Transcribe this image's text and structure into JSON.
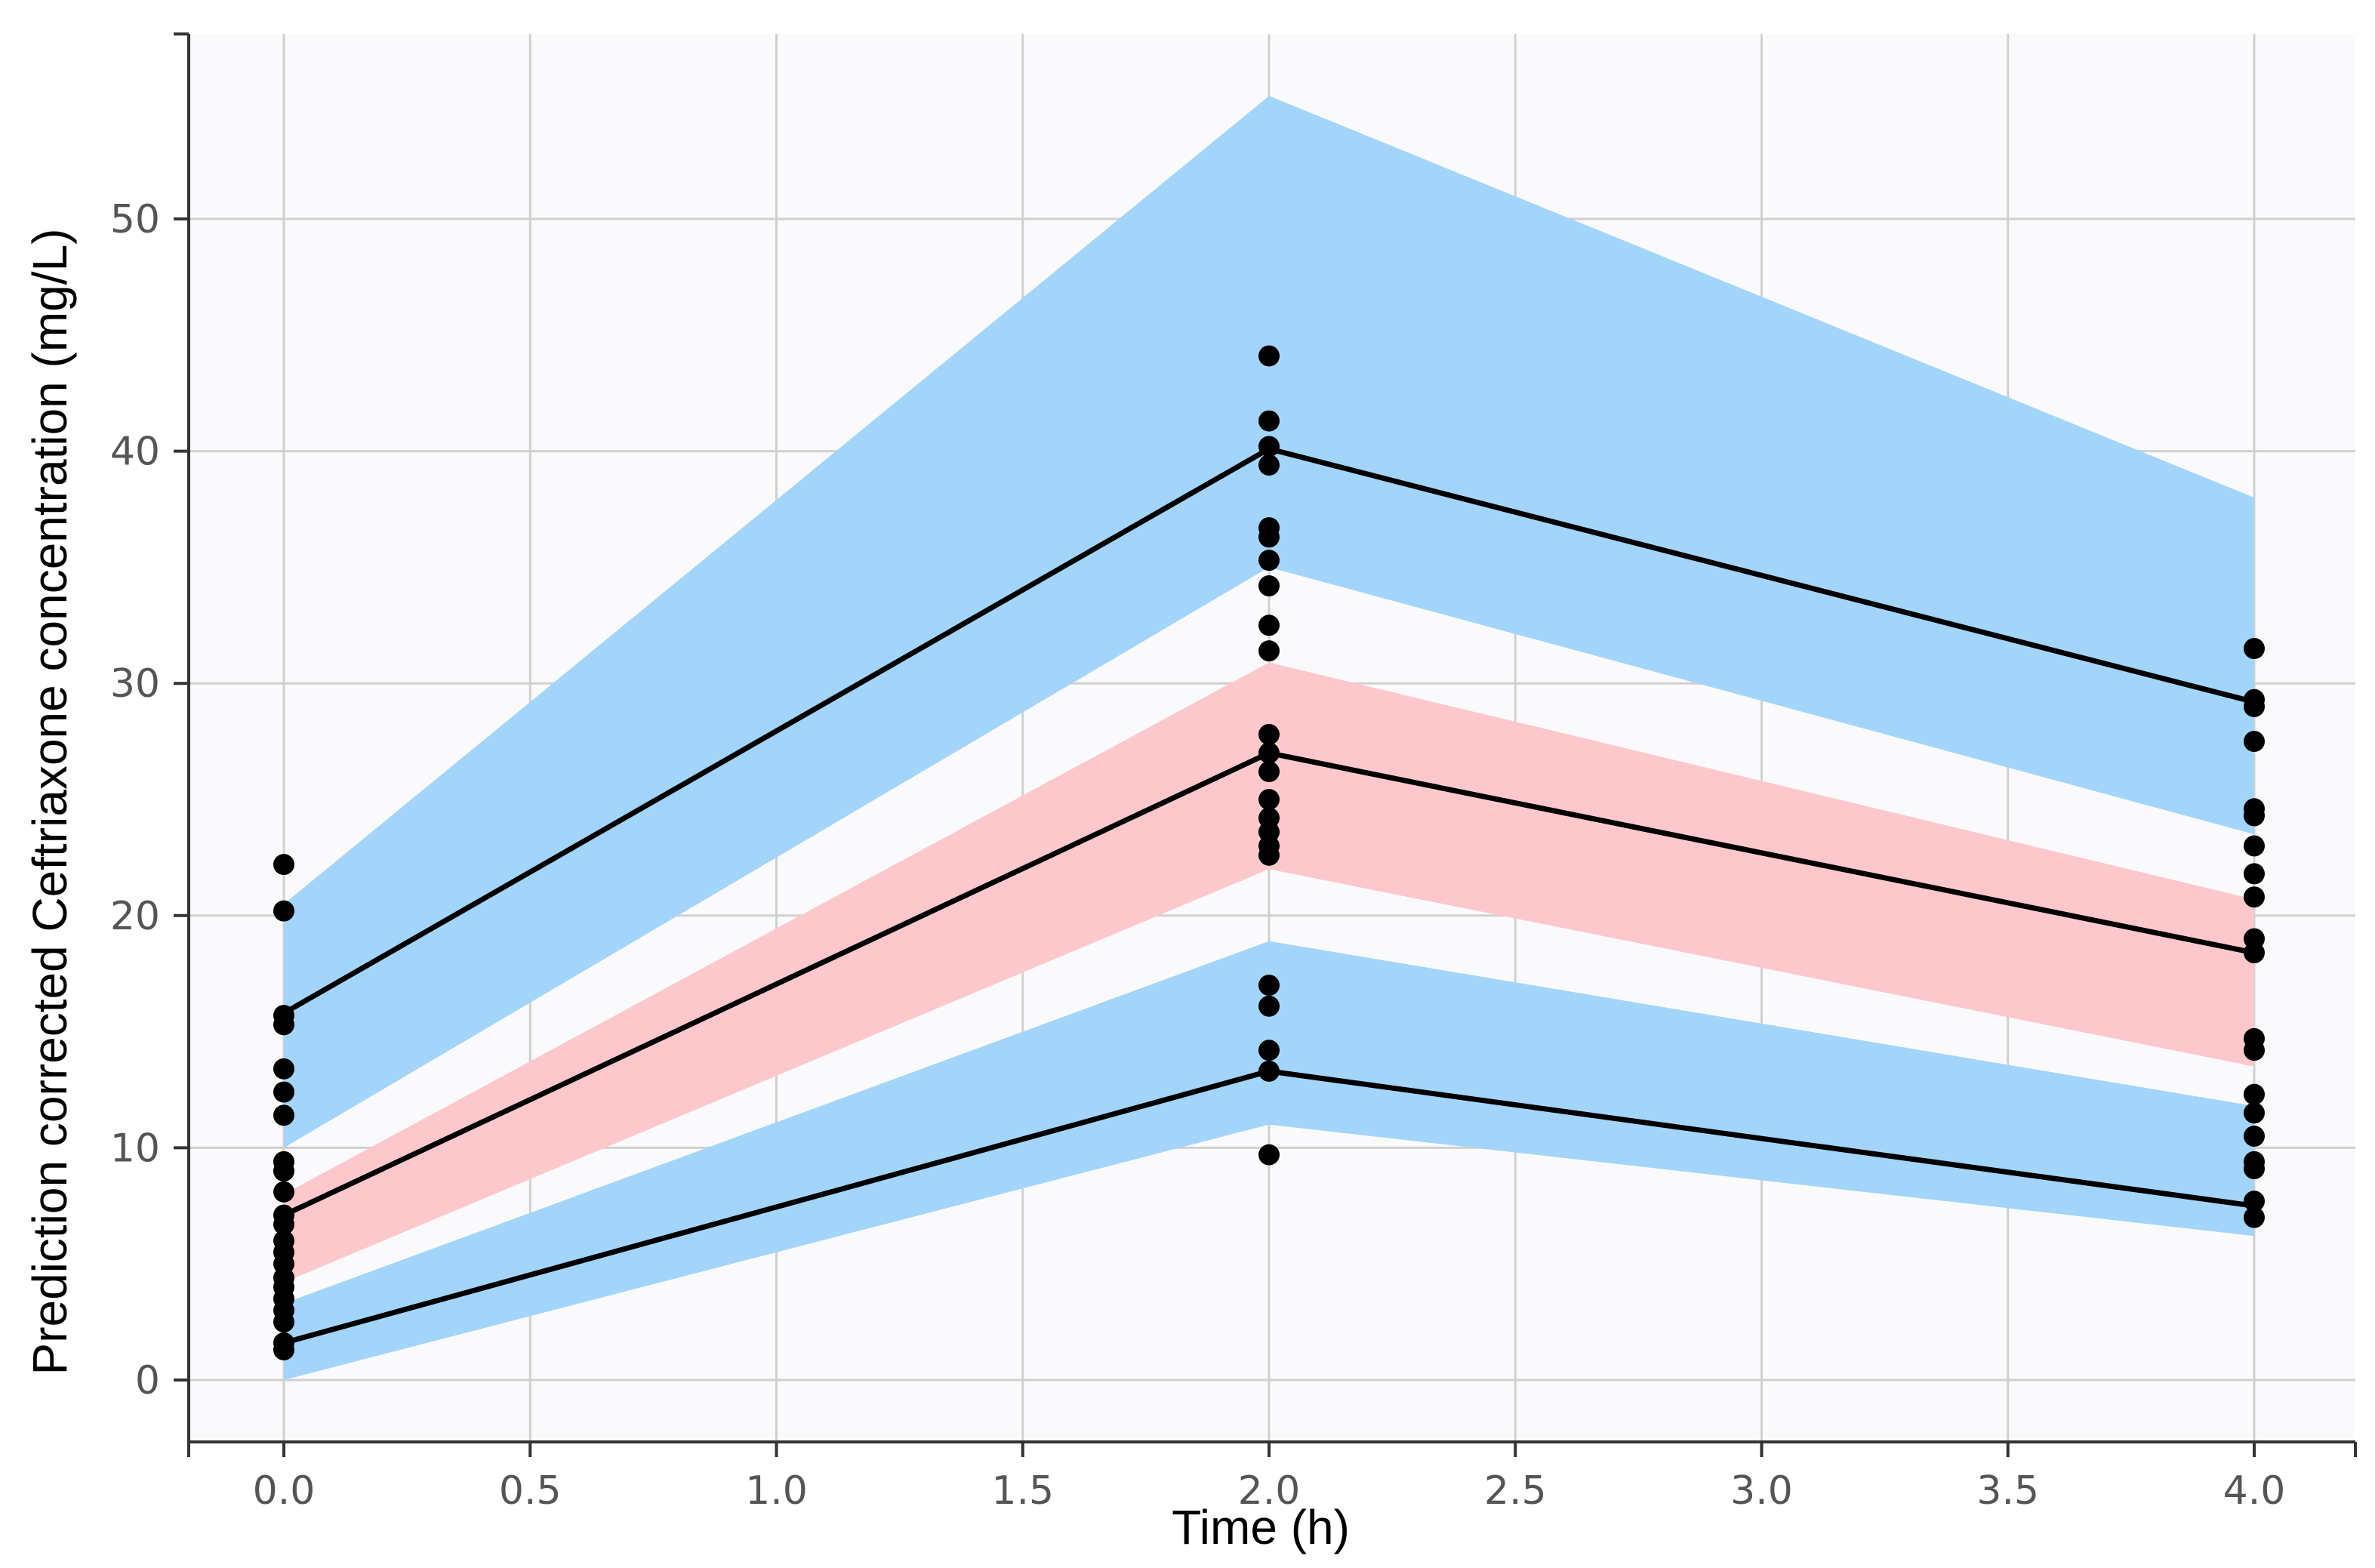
{
  "chart_data": {
    "type": "line",
    "title": "",
    "xlabel": "Time (h)",
    "ylabel": "Prediction corrected Ceftriaxone concentration (mg/L)",
    "xlim": [
      -0.2,
      4.4
    ],
    "ylim": [
      -3,
      58
    ],
    "grid": true,
    "x_ticks": [
      0.0,
      0.5,
      1.0,
      1.5,
      2.0,
      2.5,
      3.0,
      3.5,
      4.0
    ],
    "x_tick_labels": [
      "0.0",
      "0.5",
      "1.0",
      "1.5",
      "2.0",
      "2.5",
      "3.0",
      "3.5",
      "4.0"
    ],
    "y_ticks": [
      0,
      10,
      20,
      30,
      40,
      50
    ],
    "y_tick_labels": [
      "0",
      "10",
      "20",
      "30",
      "40",
      "50"
    ],
    "x": [
      0.0,
      2.0,
      4.0
    ],
    "bands": [
      {
        "name": "upper-percentile-ci",
        "color": "#a3d5fb",
        "lower": [
          10.0,
          35.0,
          23.5
        ],
        "upper": [
          20.5,
          55.3,
          38.0
        ]
      },
      {
        "name": "median-ci",
        "color": "#fdc8cc",
        "lower": [
          4.2,
          22.0,
          13.5
        ],
        "upper": [
          8.0,
          30.9,
          20.7
        ]
      },
      {
        "name": "lower-percentile-ci",
        "color": "#a3d5fb",
        "lower": [
          0.0,
          11.0,
          6.2
        ],
        "upper": [
          3.3,
          18.9,
          11.8
        ]
      }
    ],
    "series": [
      {
        "name": "upper-percentile",
        "color": "#000000",
        "values": [
          15.8,
          40.1,
          29.2
        ]
      },
      {
        "name": "median",
        "color": "#000000",
        "values": [
          7.1,
          27.0,
          18.4
        ]
      },
      {
        "name": "lower-percentile",
        "color": "#000000",
        "values": [
          1.6,
          13.3,
          7.5
        ]
      }
    ],
    "observations": [
      {
        "x": 0.0,
        "y": [
          22.2,
          20.2,
          15.7,
          15.3,
          13.4,
          12.4,
          11.4,
          9.4,
          9.0,
          8.1,
          7.1,
          6.7,
          6.0,
          5.5,
          5.0,
          4.4,
          4.0,
          3.5,
          3.0,
          2.5,
          1.6,
          1.3
        ]
      },
      {
        "x": 2.0,
        "y": [
          44.1,
          41.3,
          40.2,
          39.4,
          36.7,
          36.3,
          35.3,
          34.2,
          32.5,
          31.4,
          27.8,
          27.0,
          26.2,
          25.0,
          24.2,
          23.6,
          23.0,
          22.6,
          17.0,
          16.1,
          14.2,
          13.3,
          9.7
        ]
      },
      {
        "x": 4.0,
        "y": [
          31.5,
          29.3,
          29.0,
          27.5,
          24.6,
          24.3,
          23.0,
          21.8,
          20.8,
          19.0,
          18.4,
          14.7,
          14.2,
          12.3,
          11.5,
          10.5,
          9.4,
          9.1,
          7.7,
          7.0
        ]
      }
    ],
    "colors": {
      "panel_background": "#fafafd",
      "grid": "#d0d0d0",
      "axis": "#333333",
      "point": "#000000"
    }
  }
}
